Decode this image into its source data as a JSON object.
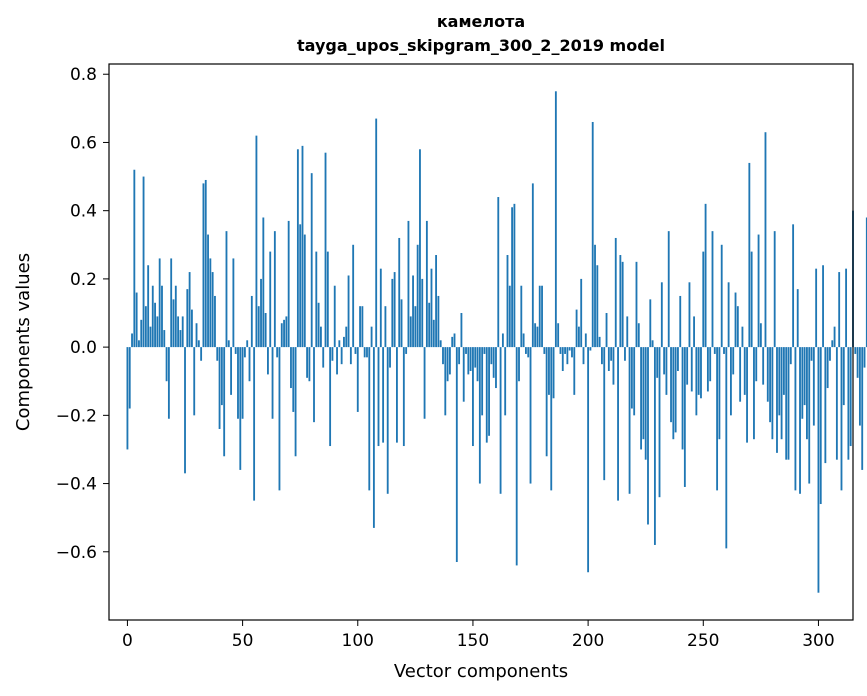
{
  "chart_data": {
    "type": "bar",
    "title": "камелота",
    "subtitle": "tayga_upos_skipgram_300_2_2019 model",
    "xlabel": "Vector components",
    "ylabel": "Components values",
    "xlim": [
      -8,
      315
    ],
    "ylim": [
      -0.8,
      0.83
    ],
    "xticks": [
      0,
      50,
      100,
      150,
      200,
      250,
      300
    ],
    "yticks": [
      -0.6,
      -0.4,
      -0.2,
      0.0,
      0.2,
      0.4,
      0.6,
      0.8
    ],
    "xtick_labels": [
      "0",
      "50",
      "100",
      "150",
      "200",
      "250",
      "300"
    ],
    "ytick_labels": [
      "−0.6",
      "−0.4",
      "−0.2",
      "0.0",
      "0.2",
      "0.4",
      "0.6",
      "0.8"
    ],
    "grid": false,
    "legend": "none",
    "bar_color": "#1f77b4",
    "series": [
      {
        "values": [
          -0.3,
          -0.18,
          0.04,
          0.52,
          0.16,
          0.02,
          0.08,
          0.5,
          0.12,
          0.24,
          0.06,
          0.18,
          0.13,
          0.09,
          0.26,
          0.18,
          0.05,
          -0.1,
          -0.21,
          0.26,
          0.14,
          0.18,
          0.09,
          0.05,
          0.09,
          -0.37,
          0.17,
          0.22,
          0.11,
          -0.2,
          0.07,
          0.02,
          -0.04,
          0.48,
          0.49,
          0.33,
          0.26,
          0.22,
          0.15,
          -0.04,
          -0.24,
          -0.17,
          -0.32,
          0.34,
          0.02,
          -0.14,
          0.26,
          -0.02,
          -0.21,
          -0.36,
          -0.21,
          -0.03,
          0.02,
          -0.1,
          0.15,
          -0.45,
          0.62,
          0.12,
          0.2,
          0.38,
          0.1,
          -0.08,
          0.28,
          -0.21,
          0.34,
          -0.03,
          -0.42,
          0.07,
          0.08,
          0.09,
          0.37,
          -0.12,
          -0.19,
          -0.32,
          0.58,
          0.36,
          0.59,
          0.33,
          -0.09,
          -0.1,
          0.51,
          -0.22,
          0.28,
          0.13,
          0.06,
          -0.06,
          0.57,
          0.28,
          -0.29,
          -0.04,
          0.18,
          -0.08,
          0.02,
          -0.05,
          0.03,
          0.06,
          0.21,
          -0.05,
          0.3,
          -0.02,
          -0.19,
          0.12,
          0.12,
          -0.03,
          -0.03,
          -0.42,
          0.06,
          -0.53,
          0.67,
          -0.29,
          0.23,
          -0.28,
          0.12,
          -0.43,
          -0.06,
          0.2,
          0.22,
          -0.28,
          0.32,
          0.14,
          -0.29,
          -0.02,
          0.37,
          0.09,
          0.21,
          0.12,
          0.3,
          0.58,
          0.2,
          -0.21,
          0.37,
          0.13,
          0.23,
          0.08,
          0.27,
          0.15,
          0.02,
          -0.05,
          -0.2,
          -0.1,
          -0.08,
          0.03,
          0.04,
          -0.63,
          -0.05,
          0.1,
          -0.16,
          -0.02,
          -0.08,
          -0.07,
          -0.29,
          -0.06,
          -0.1,
          -0.4,
          -0.2,
          -0.02,
          -0.28,
          -0.26,
          -0.05,
          -0.09,
          -0.12,
          0.44,
          -0.43,
          0.04,
          -0.2,
          0.27,
          0.18,
          0.41,
          0.42,
          -0.64,
          -0.1,
          0.18,
          0.04,
          -0.02,
          -0.03,
          -0.4,
          0.48,
          0.07,
          0.06,
          0.18,
          0.18,
          -0.02,
          -0.32,
          -0.14,
          -0.42,
          -0.15,
          0.75,
          0.07,
          -0.02,
          -0.07,
          -0.02,
          -0.05,
          -0.01,
          -0.03,
          -0.14,
          0.11,
          0.06,
          0.2,
          -0.05,
          0.04,
          -0.66,
          -0.01,
          0.66,
          0.3,
          0.24,
          0.03,
          -0.05,
          -0.39,
          0.1,
          -0.07,
          -0.04,
          -0.11,
          0.32,
          -0.45,
          0.27,
          0.25,
          -0.04,
          0.09,
          -0.43,
          -0.18,
          -0.2,
          0.25,
          0.07,
          -0.3,
          -0.27,
          -0.33,
          -0.52,
          0.14,
          0.02,
          -0.58,
          -0.09,
          -0.44,
          0.19,
          -0.08,
          -0.14,
          0.34,
          -0.22,
          -0.27,
          -0.25,
          -0.07,
          0.15,
          -0.3,
          -0.41,
          -0.11,
          0.19,
          -0.13,
          0.09,
          -0.2,
          -0.14,
          -0.15,
          0.28,
          0.42,
          -0.13,
          -0.1,
          0.34,
          -0.02,
          -0.42,
          -0.27,
          0.3,
          -0.02,
          -0.59,
          0.19,
          -0.2,
          -0.08,
          0.16,
          0.12,
          -0.16,
          0.06,
          -0.14,
          -0.28,
          0.54,
          0.28,
          -0.27,
          -0.1,
          0.33,
          0.07,
          -0.11,
          0.63,
          -0.16,
          -0.22,
          -0.27,
          0.34,
          -0.31,
          -0.2,
          -0.27,
          -0.14,
          -0.33,
          -0.33,
          -0.05,
          0.36,
          -0.42,
          0.17,
          -0.43,
          -0.21,
          -0.17,
          -0.27,
          -0.4,
          -0.04,
          -0.23,
          0.23,
          -0.72,
          -0.46,
          0.24,
          -0.34,
          -0.12,
          -0.04,
          0.02,
          0.06,
          -0.33,
          0.22,
          -0.42,
          -0.17,
          0.23,
          -0.33,
          -0.29,
          0.4,
          -0.02,
          -0.09,
          -0.23,
          -0.36,
          -0.06,
          0.38
        ]
      }
    ]
  }
}
